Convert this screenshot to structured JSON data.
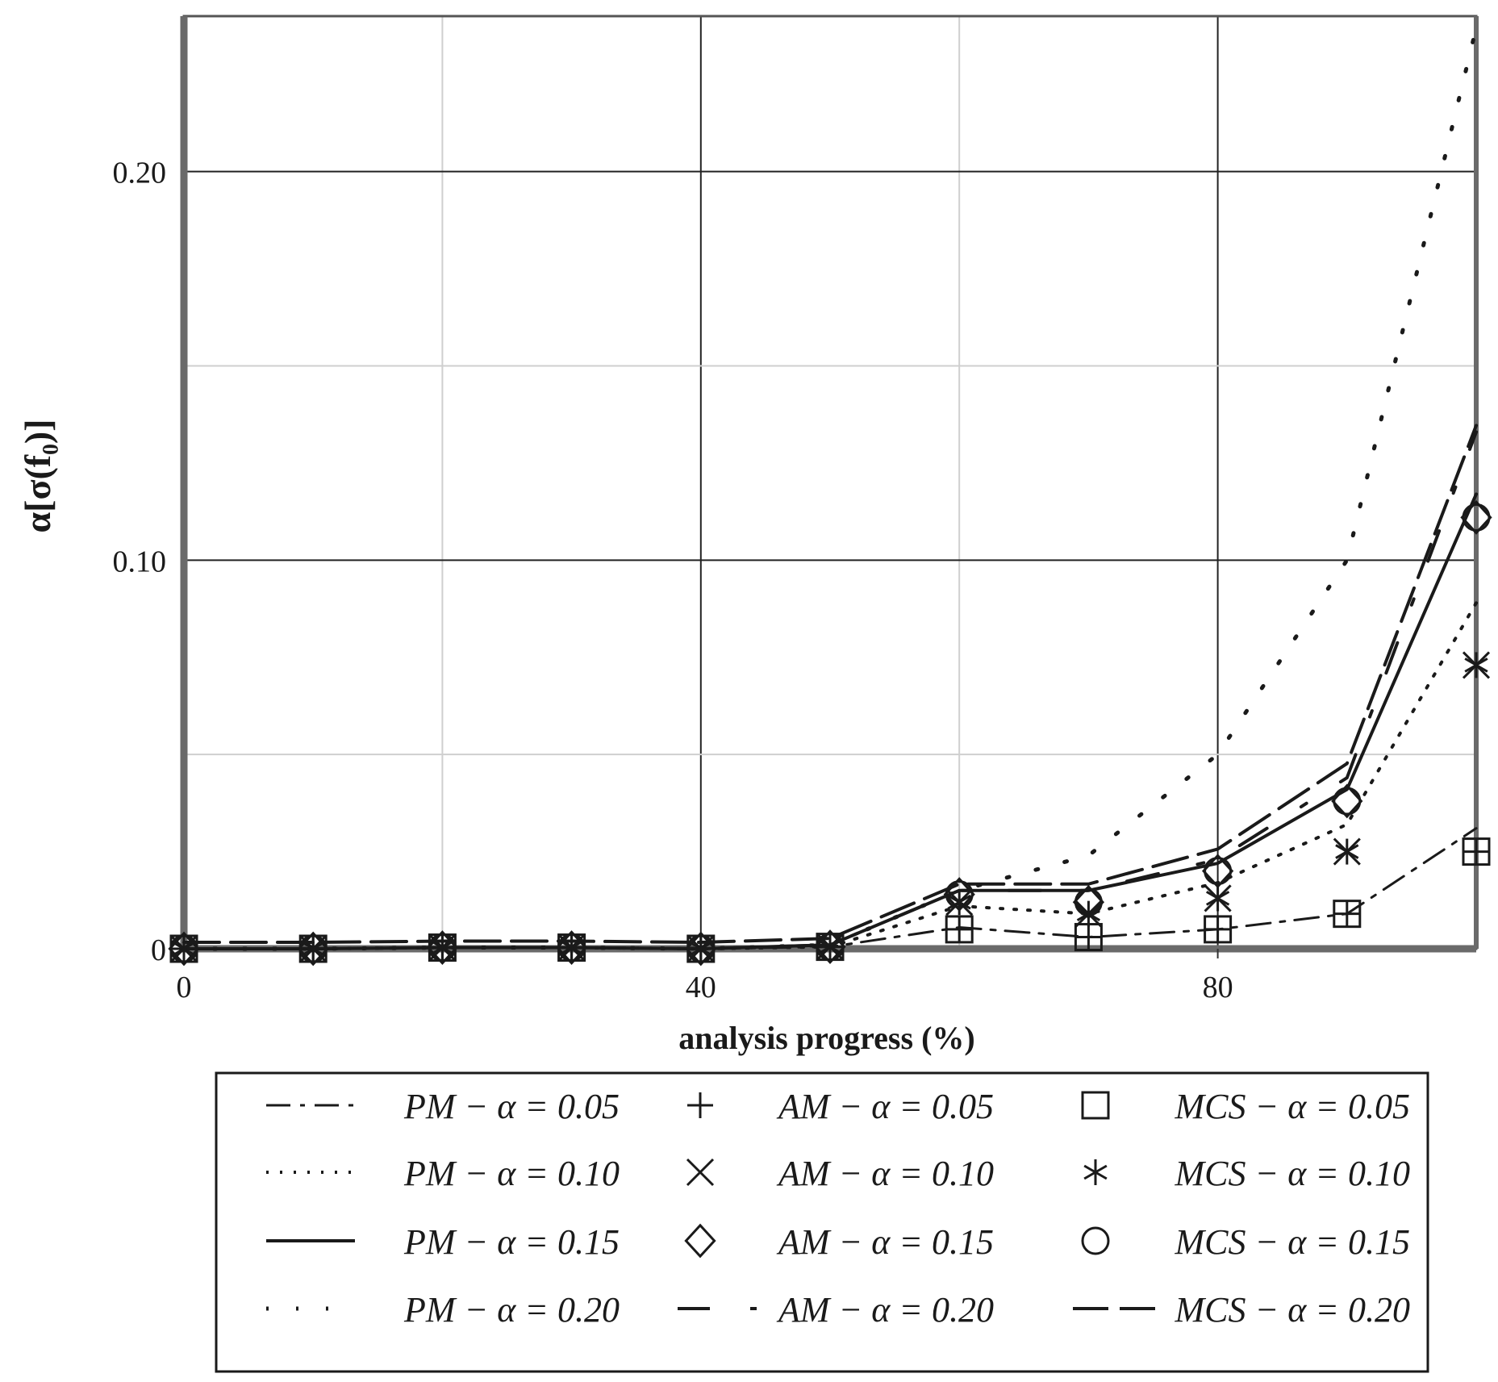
{
  "chart_data": {
    "type": "line",
    "title": "",
    "xlabel": "analysis progress (%)",
    "ylabel": "α[σ(f₀)]",
    "xlim": [
      0,
      100
    ],
    "ylim": [
      0,
      0.24
    ],
    "x_ticks": [
      "0",
      "40",
      "80"
    ],
    "y_ticks": [
      "0",
      "0.10",
      "0.20"
    ],
    "grid": true,
    "legend_position": "bottom",
    "x": [
      0,
      10,
      20,
      30,
      40,
      50,
      60,
      70,
      80,
      90,
      100
    ],
    "series": [
      {
        "name": "PM − α = 0.05",
        "style": "dashdot",
        "marker": "none",
        "values": [
          0,
          0,
          0.0003,
          0.0003,
          0,
          0.0005,
          0.0055,
          0.003,
          0.005,
          0.009,
          0.031
        ]
      },
      {
        "name": "PM − α = 0.10",
        "style": "dotted",
        "marker": "none",
        "values": [
          0,
          0,
          0.0003,
          0.0003,
          0,
          0.0005,
          0.011,
          0.009,
          0.017,
          0.032,
          0.089
        ]
      },
      {
        "name": "PM − α = 0.15",
        "style": "solid",
        "marker": "none",
        "values": [
          0,
          0,
          0.0003,
          0.0003,
          0,
          0.001,
          0.015,
          0.015,
          0.022,
          0.041,
          0.117
        ]
      },
      {
        "name": "PM − α = 0.20",
        "style": "sparse-dots",
        "marker": "none",
        "values": [
          0,
          0,
          0.0003,
          0.0003,
          0,
          0.001,
          0.015,
          0.024,
          0.05,
          0.1,
          0.237
        ]
      },
      {
        "name": "AM − α = 0.05",
        "style": "none",
        "marker": "plus",
        "values": [
          0,
          0,
          0.0003,
          0.0003,
          0,
          0.0005,
          0.005,
          0.003,
          0.005,
          0.009,
          0.025
        ]
      },
      {
        "name": "AM − α = 0.10",
        "style": "none",
        "marker": "x",
        "values": [
          0,
          0,
          0.0003,
          0.0003,
          0,
          0.0005,
          0.012,
          0.009,
          0.013,
          0.025,
          0.073
        ]
      },
      {
        "name": "AM − α = 0.15",
        "style": "none",
        "marker": "diamond",
        "values": [
          0,
          0,
          0.0003,
          0.0003,
          0,
          0.0005,
          0.014,
          0.012,
          0.02,
          0.038,
          0.111
        ]
      },
      {
        "name": "AM − α = 0.20",
        "style": "longdash-gap",
        "marker": "none",
        "values": [
          0,
          0,
          0.0003,
          0.0003,
          0,
          0.001,
          0.015,
          0.015,
          0.023,
          0.044,
          0.133
        ]
      },
      {
        "name": "MCS − α = 0.05",
        "style": "none",
        "marker": "square",
        "values": [
          0,
          0,
          0.0003,
          0.0003,
          0,
          0.0005,
          0.005,
          0.003,
          0.005,
          0.009,
          0.025
        ]
      },
      {
        "name": "MCS − α = 0.10",
        "style": "none",
        "marker": "star",
        "values": [
          0,
          0,
          0.0003,
          0.0003,
          0,
          0.0005,
          0.012,
          0.009,
          0.013,
          0.025,
          0.073
        ]
      },
      {
        "name": "MCS − α = 0.15",
        "style": "none",
        "marker": "circle",
        "values": [
          0,
          0,
          0.0003,
          0.0003,
          0,
          0.0005,
          0.014,
          0.012,
          0.02,
          0.038,
          0.111
        ]
      },
      {
        "name": "MCS − α = 0.20",
        "style": "longdash",
        "marker": "none",
        "values": [
          0,
          0,
          0.0003,
          0.0003,
          0,
          0.001,
          0.015,
          0.015,
          0.024,
          0.046,
          0.133
        ]
      }
    ]
  }
}
